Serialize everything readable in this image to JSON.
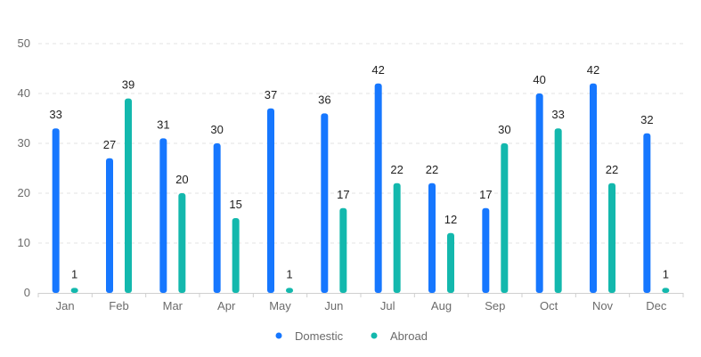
{
  "chart_data": {
    "type": "bar",
    "categories": [
      "Jan",
      "Feb",
      "Mar",
      "Apr",
      "May",
      "Jun",
      "Jul",
      "Aug",
      "Sep",
      "Oct",
      "Nov",
      "Dec"
    ],
    "series": [
      {
        "name": "Domestic",
        "color": "#1677ff",
        "values": [
          33,
          27,
          31,
          30,
          37,
          36,
          42,
          22,
          17,
          40,
          42,
          32
        ]
      },
      {
        "name": "Abroad",
        "color": "#13b8ad",
        "values": [
          1,
          39,
          20,
          15,
          1,
          17,
          22,
          12,
          30,
          33,
          22,
          1
        ]
      }
    ],
    "ylim": [
      0,
      50
    ],
    "yticks": [
      0,
      10,
      20,
      30,
      40,
      50
    ],
    "grid": true,
    "legend_position": "bottom"
  }
}
